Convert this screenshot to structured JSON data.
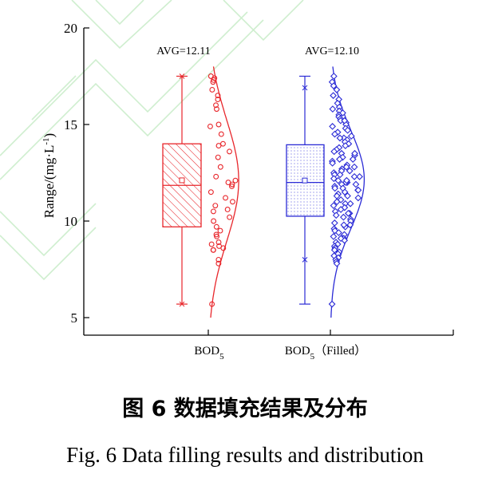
{
  "caption_cn": "图 6 数据填充结果及分布",
  "caption_en": "Fig. 6 Data filling results and distribution",
  "chart_data": {
    "type": "boxplot",
    "ylabel_main": "Range/(mg·L",
    "ylabel_sup": "-1",
    "ylabel_close": ")",
    "ylim": [
      5,
      20
    ],
    "yticks": [
      5,
      10,
      15,
      20
    ],
    "grid": false,
    "groups": [
      {
        "label_main": "BOD",
        "label_sub": "5",
        "label_suffix": "",
        "avg_label": "AVG=12.11",
        "color": "#e8262b",
        "fill_pattern": "diagonal-hatch",
        "mean": 12.11,
        "q1": 9.7,
        "median": 11.85,
        "q3": 14.0,
        "whisker_low": 5.7,
        "whisker_high": 17.5,
        "p1": 5.7,
        "p99": 17.5,
        "points": [
          17.5,
          17.4,
          17.3,
          17.2,
          16.8,
          16.5,
          16.3,
          16.0,
          15.8,
          15.0,
          14.9,
          14.5,
          14.0,
          13.9,
          13.6,
          13.3,
          12.8,
          12.3,
          12.1,
          12.0,
          11.9,
          11.8,
          11.5,
          11.2,
          11.0,
          10.8,
          10.6,
          10.5,
          10.2,
          10.0,
          9.7,
          9.5,
          9.3,
          9.2,
          8.9,
          8.8,
          8.7,
          8.6,
          8.5,
          8.5,
          8.0,
          7.8,
          5.7
        ]
      },
      {
        "label_main": "BOD",
        "label_sub": "5",
        "label_suffix": "（Filled）",
        "avg_label": "AVG=12.10",
        "color": "#2b2bd6",
        "fill_pattern": "dots",
        "mean": 12.1,
        "q1": 10.25,
        "median": 12.0,
        "q3": 13.95,
        "whisker_low": 5.7,
        "whisker_high": 17.5,
        "p1": 8.0,
        "p99": 16.9,
        "points": [
          17.5,
          17.2,
          17.0,
          16.8,
          16.5,
          16.3,
          16.1,
          15.9,
          15.8,
          15.7,
          15.6,
          15.5,
          15.4,
          15.3,
          15.2,
          15.1,
          15.0,
          14.9,
          14.8,
          14.7,
          14.6,
          14.5,
          14.4,
          14.3,
          14.2,
          14.1,
          14.0,
          13.9,
          13.8,
          13.7,
          13.6,
          13.5,
          13.4,
          13.3,
          13.2,
          13.1,
          13.0,
          12.9,
          12.8,
          12.7,
          12.6,
          12.5,
          12.4,
          12.3,
          12.2,
          12.1,
          12.0,
          12.0,
          11.9,
          11.8,
          11.7,
          11.6,
          11.5,
          11.4,
          11.3,
          11.2,
          11.1,
          11.0,
          10.9,
          10.8,
          10.7,
          10.6,
          10.5,
          10.4,
          10.3,
          10.2,
          10.1,
          10.0,
          9.9,
          9.8,
          9.7,
          9.6,
          9.5,
          9.4,
          9.3,
          9.2,
          9.1,
          9.0,
          8.9,
          8.8,
          8.7,
          8.6,
          8.5,
          8.4,
          8.3,
          8.2,
          8.1,
          8.0,
          7.9,
          7.8,
          5.7,
          12.3,
          12.6,
          11.6,
          11.9,
          13.2,
          10.9,
          12.8,
          11.3,
          14.3,
          9.8,
          12.1,
          13.5,
          10.4,
          11.7,
          12.4,
          15.2,
          9.1
        ]
      }
    ]
  }
}
